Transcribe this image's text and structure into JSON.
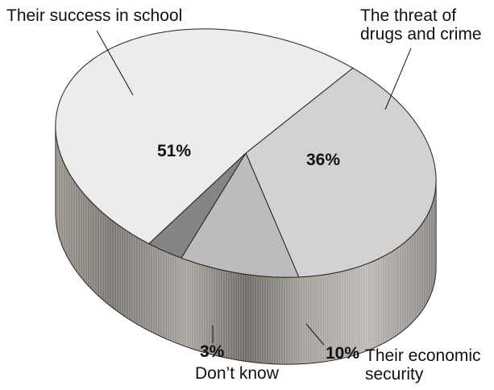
{
  "chart_data": {
    "type": "pie",
    "style": "3d",
    "slices": [
      {
        "label": "Their success in school",
        "label_lines": [
          "Their success in school"
        ],
        "value": 51,
        "value_label": "51%",
        "color": "#ececec"
      },
      {
        "label": "The threat of drugs and crime",
        "label_lines": [
          "The threat of",
          "drugs and crime"
        ],
        "value": 36,
        "value_label": "36%",
        "color": "#d2d2d2"
      },
      {
        "label": "Their economic security",
        "label_lines": [
          "Their economic",
          "security"
        ],
        "value": 10,
        "value_label": "10%",
        "color": "#bcbcbc"
      },
      {
        "label": "Don't know",
        "label_lines": [
          "Don’t know"
        ],
        "value": 3,
        "value_label": "3%",
        "color": "#858585"
      }
    ]
  }
}
